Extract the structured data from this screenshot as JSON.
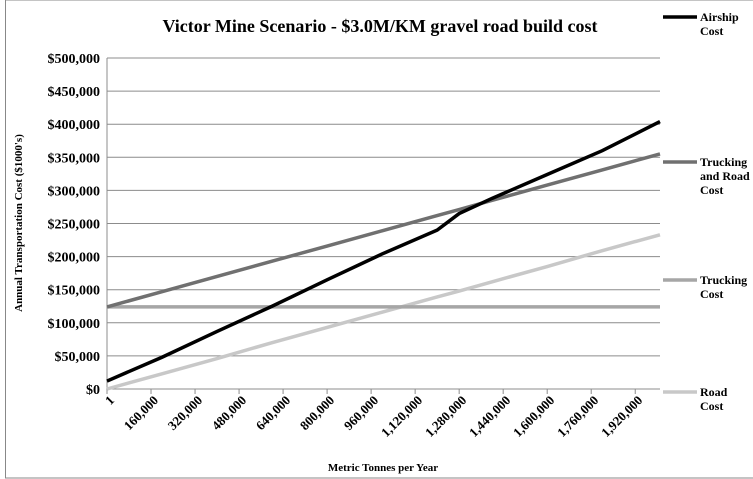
{
  "chart_data": {
    "type": "line",
    "title": "Victor Mine Scenario - $3.0M/KM gravel road build cost",
    "x_label": "Metric Tonnes per Year",
    "y_label": "Annual Transportation Cost ($1000's)",
    "x": [
      1,
      200000,
      400000,
      600000,
      800000,
      1000000,
      1200000,
      1280000,
      1400000,
      1600000,
      1800000,
      2010000
    ],
    "series": [
      {
        "name": "Airship Cost",
        "color": "#000000",
        "values": [
          12000,
          48000,
          87000,
          125000,
          165000,
          204000,
          240000,
          265000,
          288000,
          324000,
          360000,
          404000
        ]
      },
      {
        "name": "Trucking and Road Cost",
        "color": "#707070",
        "values": [
          124000,
          147000,
          170000,
          193000,
          216000,
          239000,
          262000,
          271000,
          285000,
          308000,
          331000,
          355000
        ]
      },
      {
        "name": "Trucking Cost",
        "color": "#a6a6a6",
        "values": [
          124000,
          124000,
          124000,
          124000,
          124000,
          124000,
          124000,
          124000,
          124000,
          124000,
          124000,
          124000
        ]
      },
      {
        "name": "Road Cost",
        "color": "#c8c8c8",
        "values": [
          0,
          23000,
          46000,
          70000,
          93000,
          116000,
          139000,
          148000,
          162000,
          185000,
          209000,
          233000
        ]
      }
    ],
    "xlim": [
      1,
      2010000
    ],
    "xticks": [
      1,
      {
        "value": 160000,
        "label": "160,000"
      },
      {
        "value": 320000,
        "label": "320,000"
      },
      {
        "value": 480000,
        "label": "480,000"
      },
      {
        "value": 640000,
        "label": "640,000"
      },
      {
        "value": 800000,
        "label": "800,000"
      },
      {
        "value": 960000,
        "label": "960,000"
      },
      {
        "value": 1120000,
        "label": "1,120,000"
      },
      {
        "value": 1280000,
        "label": "1,280,000"
      },
      {
        "value": 1440000,
        "label": "1,440,000"
      },
      {
        "value": 1600000,
        "label": "1,600,000"
      },
      {
        "value": 1760000,
        "label": "1,760,000"
      },
      {
        "value": 1920000,
        "label": "1,920,000"
      }
    ],
    "ylim": [
      0,
      500000
    ],
    "yticks": [
      {
        "value": 0,
        "label": "$0"
      },
      {
        "value": 50000,
        "label": "$50,000"
      },
      {
        "value": 100000,
        "label": "$100,000"
      },
      {
        "value": 150000,
        "label": "$150,000"
      },
      {
        "value": 200000,
        "label": "$200,000"
      },
      {
        "value": 250000,
        "label": "$250,000"
      },
      {
        "value": 300000,
        "label": "$300,000"
      },
      {
        "value": 350000,
        "label": "$350,000"
      },
      {
        "value": 400000,
        "label": "$400,000"
      },
      {
        "value": 450000,
        "label": "$450,000"
      },
      {
        "value": 500000,
        "label": "$500,000"
      }
    ],
    "grid": true,
    "legend": "right"
  }
}
